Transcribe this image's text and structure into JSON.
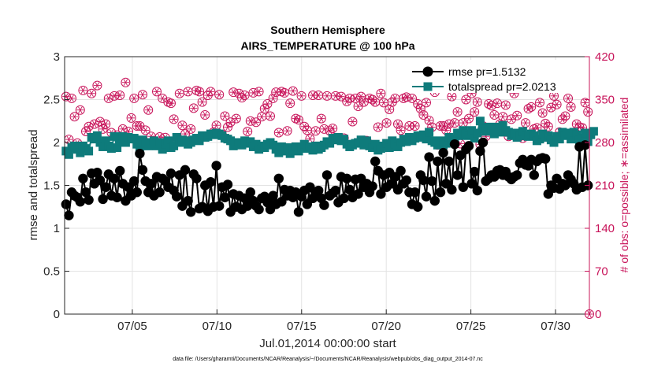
{
  "chart_data": {
    "type": "line",
    "title": "Southern Hemisphere",
    "subtitle": "AIRS_TEMPERATURE @ 100 hPa",
    "xlabel": "Jul.01,2014 00:00:00 start",
    "ylabel": "rmse and totalspread",
    "y2label": "# of obs: o=possible; ∗=assimilated",
    "footer": "data file: /Users/gharamti/Documents/NCAR/Reanalysis/~/Documents/NCAR/Reanalysis/webpub/obs_diag_output_2014-07.nc",
    "ylim": [
      0,
      3
    ],
    "yticks": [
      "0",
      "0.5",
      "1",
      "1.5",
      "2",
      "2.5",
      "3"
    ],
    "y2lim": [
      0,
      420
    ],
    "y2ticks": [
      "0",
      "70",
      "140",
      "210",
      "280",
      "350",
      "420"
    ],
    "xlim_days": [
      1.0,
      32.0
    ],
    "xticks": [
      {
        "day": 5.0,
        "label": "07/05"
      },
      {
        "day": 10.0,
        "label": "07/10"
      },
      {
        "day": 15.0,
        "label": "07/15"
      },
      {
        "day": 20.0,
        "label": "07/20"
      },
      {
        "day": 25.0,
        "label": "07/25"
      },
      {
        "day": 30.0,
        "label": "07/30"
      }
    ],
    "grid": true,
    "legend_position": "top-right",
    "colors": {
      "rmse": "#000000",
      "spread": "#0e7b7b",
      "obs": "#c8145a",
      "axis_right": "#c8145a"
    },
    "series": [
      {
        "name": "rmse pr=1.5132",
        "key": "rmse",
        "values": [
          1.28,
          1.15,
          1.42,
          1.38,
          1.36,
          1.31,
          1.58,
          1.42,
          1.33,
          1.64,
          1.52,
          1.65,
          1.56,
          1.34,
          1.48,
          1.63,
          1.38,
          1.58,
          1.36,
          1.67,
          1.52,
          1.32,
          1.48,
          1.38,
          1.55,
          1.42,
          1.87,
          1.68,
          1.55,
          1.42,
          1.52,
          1.38,
          1.6,
          1.42,
          1.58,
          1.55,
          1.48,
          1.64,
          1.44,
          1.37,
          1.62,
          1.26,
          1.68,
          1.32,
          1.19,
          1.63,
          1.58,
          1.23,
          1.25,
          1.5,
          1.2,
          1.54,
          1.25,
          1.73,
          1.26,
          1.48,
          1.36,
          1.51,
          1.19,
          1.4,
          1.25,
          1.38,
          1.22,
          1.35,
          1.26,
          1.42,
          1.32,
          1.26,
          1.22,
          1.35,
          1.37,
          1.3,
          1.22,
          1.38,
          1.28,
          1.58,
          1.31,
          1.45,
          1.38,
          1.44,
          1.36,
          1.42,
          1.19,
          1.37,
          1.44,
          1.28,
          1.48,
          1.35,
          1.41,
          1.44,
          1.35,
          1.27,
          1.62,
          1.38,
          1.41,
          1.44,
          1.3,
          1.6,
          1.35,
          1.58,
          1.45,
          1.36,
          1.57,
          1.4,
          1.58,
          1.48,
          1.52,
          1.42,
          1.49,
          1.78,
          1.67,
          1.4,
          1.62,
          1.48,
          1.65,
          1.52,
          1.6,
          1.45,
          1.67,
          1.52,
          1.56,
          1.42,
          1.28,
          1.42,
          1.25,
          1.62,
          1.56,
          1.37,
          1.83,
          1.55,
          1.32,
          1.78,
          1.42,
          1.88,
          1.52,
          1.78,
          1.45,
          1.98,
          1.62,
          1.85,
          1.48,
          1.92,
          1.96,
          1.52,
          1.66,
          1.44,
          1.9,
          2.0,
          1.55,
          1.58,
          1.62,
          1.6,
          1.67,
          1.68,
          1.62,
          1.66,
          1.6,
          1.57,
          1.6,
          1.62,
          1.76,
          1.8,
          1.74,
          1.73,
          1.8,
          1.62,
          1.78,
          1.81,
          1.82,
          1.81,
          1.4,
          1.5,
          1.47,
          1.58,
          1.46,
          1.52,
          1.5,
          1.62,
          1.57,
          1.52,
          1.45,
          1.95,
          1.48,
          1.97,
          1.5
        ]
      },
      {
        "name": "totalspread pr=2.0213",
        "key": "spread",
        "values": [
          1.9,
          1.86,
          1.94,
          1.96,
          1.92,
          1.88,
          1.96,
          1.93,
          1.9,
          2.06,
          2.04,
          2.08,
          2.0,
          1.95,
          2.02,
          1.96,
          1.93,
          2.07,
          1.94,
          2.03,
          2.07,
          2.0,
          2.06,
          2.04,
          2.05,
          1.98,
          1.9,
          2.03,
          1.98,
          1.96,
          2.0,
          2.02,
          1.96,
          2.0,
          1.92,
          1.98,
          2.02,
          1.94,
          1.96,
          2.06,
          2.0,
          2.03,
          2.02,
          1.98,
          2.0,
          2.03,
          2.05,
          2.02,
          2.08,
          2.06,
          2.07,
          2.1,
          2.09,
          2.11,
          2.1,
          2.08,
          2.05,
          2.04,
          2.02,
          1.96,
          1.98,
          2.0,
          1.97,
          2.02,
          1.99,
          2.01,
          1.95,
          1.98,
          1.92,
          1.96,
          1.94,
          1.98,
          2.0,
          1.97,
          1.92,
          1.88,
          1.95,
          1.9,
          1.94,
          1.87,
          1.91,
          1.95,
          1.9,
          1.94,
          1.98,
          1.93,
          1.95,
          1.91,
          1.96,
          1.92,
          1.94,
          1.97,
          2.01,
          1.99,
          2.05,
          2.03,
          2.06,
          2.02,
          2.04,
          1.98,
          1.95,
          1.97,
          1.99,
          2.0,
          2.03,
          1.97,
          2.02,
          1.96,
          1.94,
          1.98,
          1.91,
          1.93,
          1.96,
          1.99,
          1.94,
          2.02,
          1.98,
          1.95,
          2.0,
          2.04,
          2.01,
          2.06,
          2.02,
          2.05,
          2.08,
          2.06,
          2.09,
          2.04,
          2.12,
          2.02,
          2.0,
          1.97,
          2.02,
          1.97,
          1.99,
          2.06,
          2.02,
          2.04,
          2.11,
          2.08,
          2.14,
          2.1,
          2.08,
          2.14,
          2.05,
          2.11,
          2.25,
          2.16,
          2.13,
          2.18,
          2.14,
          2.1,
          2.18,
          2.12,
          2.2,
          2.14,
          2.12,
          2.08,
          2.11,
          2.06,
          2.08,
          2.13,
          2.08,
          2.07,
          2.1,
          2.08,
          2.02,
          2.04,
          2.1,
          2.06,
          2.08,
          2.03,
          2.0,
          2.07,
          2.04,
          2.12,
          2.08,
          2.11,
          2.04,
          2.12,
          2.09,
          2.03,
          2.05,
          2.11,
          2.01,
          2.09,
          2.13
        ]
      },
      {
        "name": "# of obs",
        "key": "obs",
        "values": [
          355,
          285,
          352,
          322,
          279,
          333,
          365,
          298,
          306,
          360,
          310,
          373,
          314,
          302,
          310,
          352,
          296,
          356,
          292,
          357,
          302,
          378,
          298,
          320,
          352,
          307,
          307,
          358,
          300,
          333,
          290,
          283,
          363,
          289,
          352,
          288,
          346,
          344,
          318,
          285,
          360,
          308,
          294,
          363,
          302,
          336,
          365,
          363,
          346,
          325,
          357,
          363,
          297,
          308,
          358,
          293,
          323,
          305,
          313,
          362,
          319,
          360,
          353,
          357,
          298,
          315,
          361,
          313,
          363,
          322,
          335,
          343,
          323,
          352,
          362,
          296,
          363,
          361,
          299,
          344,
          364,
          319,
          317,
          356,
          306,
          300,
          286,
          357,
          299,
          357,
          319,
          302,
          356,
          299,
          303,
          356,
          285,
          355,
          287,
          347,
          352,
          314,
          352,
          339,
          355,
          346,
          283,
          352,
          350,
          346,
          305,
          360,
          345,
          312,
          334,
          346,
          352,
          310,
          300,
          352,
          354,
          307,
          352,
          307,
          343,
          335,
          325,
          345,
          316,
          305,
          362,
          276,
          307,
          307,
          300,
          310,
          355,
          312,
          330,
          278,
          312,
          350,
          319,
          360,
          330,
          346,
          277,
          307,
          290,
          343,
          340,
          325,
          344,
          310,
          322,
          341,
          290,
          318,
          360,
          324,
          290,
          287,
          312,
          335,
          338,
          302,
          304,
          345,
          328,
          311,
          306,
          337,
          356,
          342,
          297,
          318,
          323,
          352,
          338,
          287,
          310,
          305,
          304,
          345,
          330
        ]
      }
    ]
  }
}
